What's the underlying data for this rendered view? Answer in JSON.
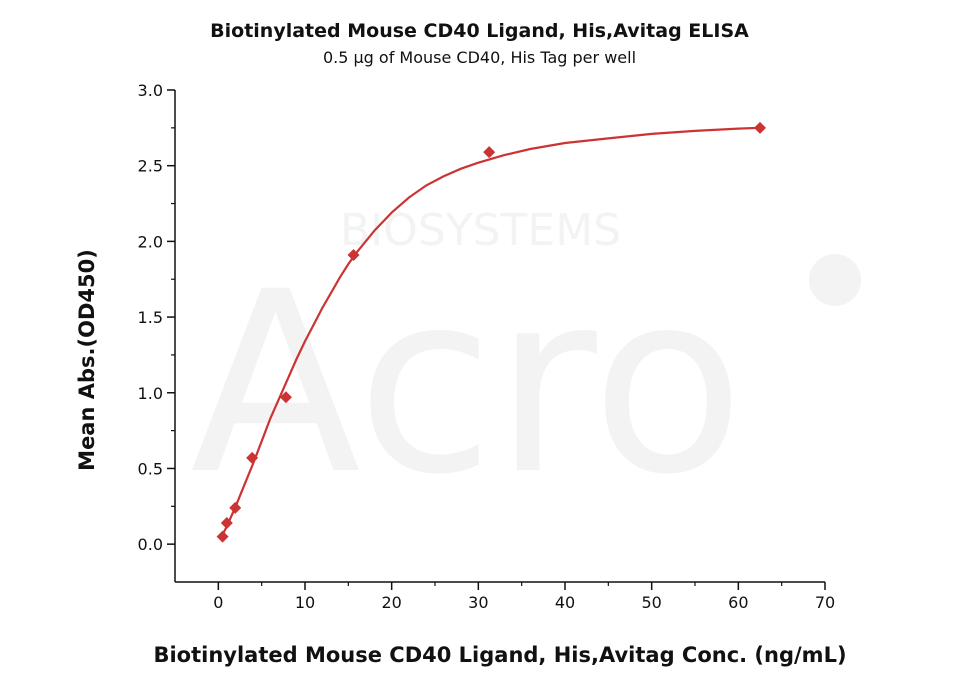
{
  "watermark": {
    "brand": "Acro",
    "text": "BIOSYSTEMS"
  },
  "colors": {
    "series": "#cc3333",
    "axis": "#111111",
    "watermark": "#f2f2f2"
  },
  "chart_data": {
    "type": "scatter",
    "title": "Biotinylated Mouse CD40 Ligand, His,Avitag ELISA",
    "subtitle": "0.5 µg of Mouse CD40, His Tag per well",
    "xlabel": "Biotinylated Mouse CD40 Ligand, His,Avitag Conc. (ng/mL)",
    "ylabel": "Mean Abs.(OD450)",
    "xlim": [
      -5,
      70
    ],
    "ylim": [
      -0.25,
      3.0
    ],
    "xticks": [
      0,
      10,
      20,
      30,
      40,
      50,
      60,
      70
    ],
    "yticks": [
      0.0,
      0.5,
      1.0,
      1.5,
      2.0,
      2.5,
      3.0
    ],
    "xtick_labels": [
      "0",
      "10",
      "20",
      "30",
      "40",
      "50",
      "60",
      "70"
    ],
    "ytick_labels": [
      "0.0",
      "0.5",
      "1.0",
      "1.5",
      "2.0",
      "2.5",
      "3.0"
    ],
    "grid": false,
    "legend": "none",
    "series": [
      {
        "marker": "diamond",
        "color": "#cc3333",
        "x": [
          0.49,
          0.98,
          1.95,
          3.9,
          7.8,
          15.6,
          31.25,
          62.5
        ],
        "y": [
          0.05,
          0.14,
          0.24,
          0.57,
          0.97,
          1.91,
          2.59,
          2.75
        ]
      }
    ],
    "fit_curve": {
      "color": "#cc3333",
      "x": [
        0.3,
        1,
        2,
        3,
        4,
        5,
        6,
        7,
        8,
        9,
        10,
        11,
        12,
        13,
        14,
        15,
        16,
        18,
        20,
        22,
        24,
        26,
        28,
        30,
        33,
        36,
        40,
        45,
        50,
        55,
        60,
        62.5
      ],
      "y": [
        0.04,
        0.12,
        0.25,
        0.39,
        0.53,
        0.68,
        0.83,
        0.96,
        1.09,
        1.22,
        1.34,
        1.45,
        1.56,
        1.66,
        1.76,
        1.85,
        1.93,
        2.07,
        2.19,
        2.29,
        2.37,
        2.43,
        2.48,
        2.52,
        2.57,
        2.61,
        2.65,
        2.68,
        2.71,
        2.73,
        2.745,
        2.75
      ]
    }
  }
}
